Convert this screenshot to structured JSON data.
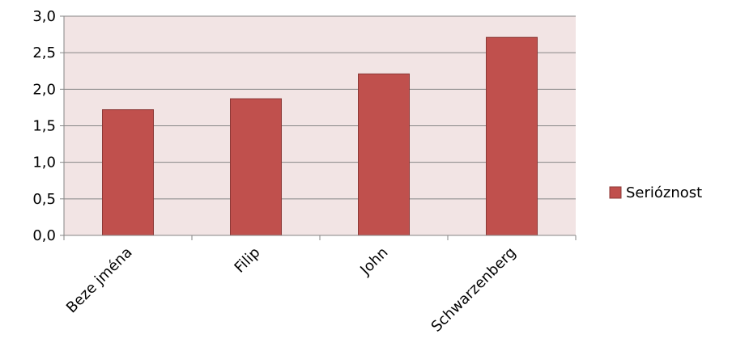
{
  "chart_data": {
    "type": "bar",
    "categories": [
      "Beze jména",
      "Filip",
      "John",
      "Schwarzenberg"
    ],
    "series": [
      {
        "name": "Serióznost",
        "values": [
          1.72,
          1.87,
          2.21,
          2.71
        ],
        "color": "#c0504d"
      }
    ],
    "ylim": [
      0,
      3.0
    ],
    "yticks": [
      "0,0",
      "0,5",
      "1,0",
      "1,5",
      "2,0",
      "2,5",
      "3,0"
    ],
    "plot_background": "#f2e4e4",
    "grid": true,
    "legend_position": "right"
  }
}
